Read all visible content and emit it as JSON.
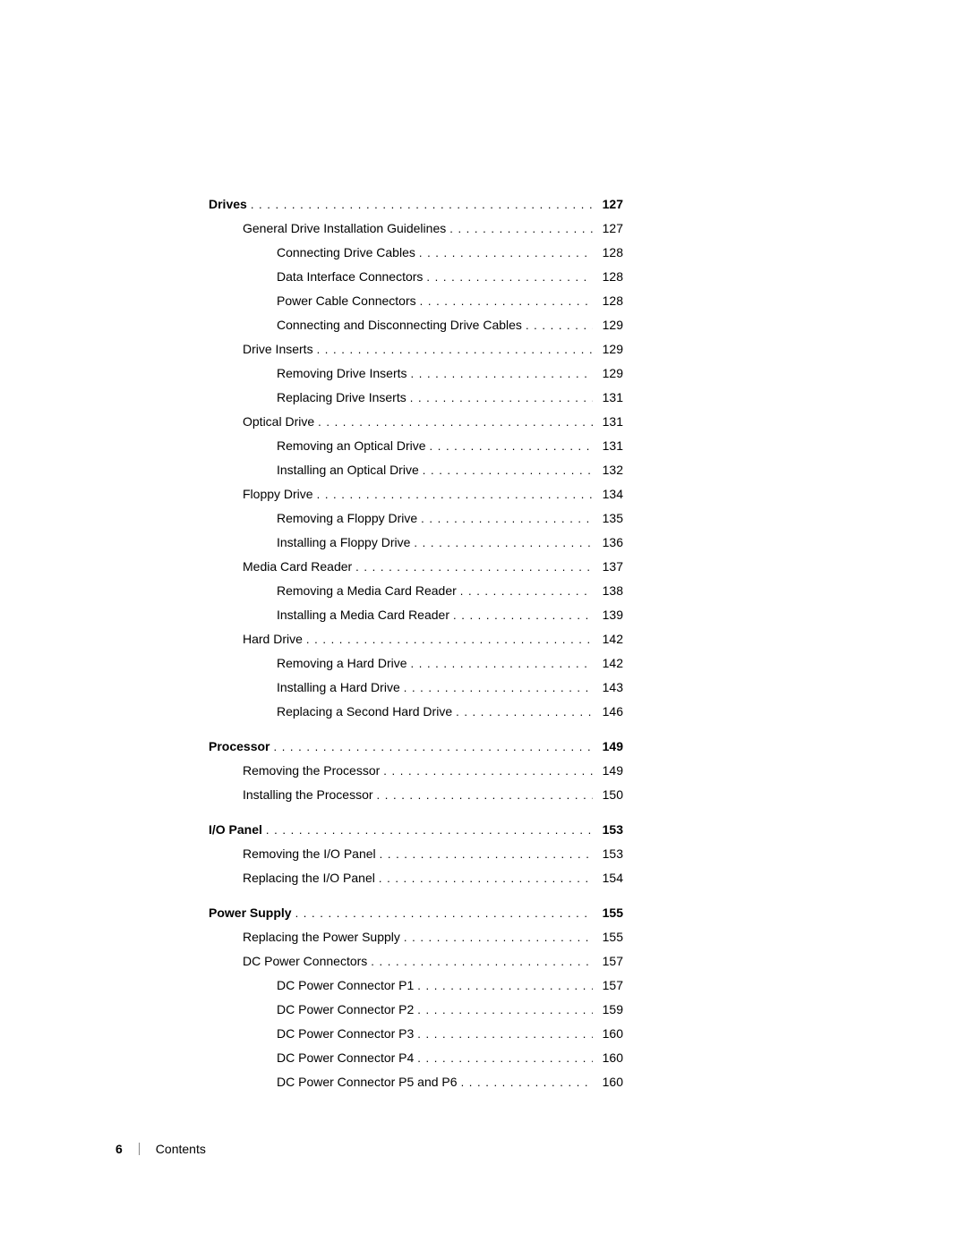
{
  "footer": {
    "page_number": "6",
    "section_label": "Contents"
  },
  "toc": {
    "sections": [
      {
        "heading": {
          "label": "Drives",
          "page": "127",
          "bold": true,
          "indent": 0
        },
        "entries": [
          {
            "label": "General Drive Installation Guidelines",
            "page": "127",
            "indent": 1
          },
          {
            "label": "Connecting Drive Cables",
            "page": "128",
            "indent": 2
          },
          {
            "label": "Data Interface Connectors",
            "page": "128",
            "indent": 2
          },
          {
            "label": "Power Cable Connectors",
            "page": "128",
            "indent": 2
          },
          {
            "label": "Connecting and Disconnecting Drive Cables",
            "page": "129",
            "indent": 2
          },
          {
            "label": "Drive Inserts",
            "page": "129",
            "indent": 1
          },
          {
            "label": "Removing Drive Inserts",
            "page": "129",
            "indent": 2
          },
          {
            "label": "Replacing Drive Inserts",
            "page": "131",
            "indent": 2
          },
          {
            "label": "Optical Drive",
            "page": "131",
            "indent": 1
          },
          {
            "label": "Removing an Optical Drive",
            "page": "131",
            "indent": 2
          },
          {
            "label": "Installing an Optical Drive",
            "page": "132",
            "indent": 2
          },
          {
            "label": "Floppy Drive",
            "page": "134",
            "indent": 1
          },
          {
            "label": "Removing a Floppy Drive",
            "page": "135",
            "indent": 2
          },
          {
            "label": "Installing a Floppy Drive",
            "page": "136",
            "indent": 2
          },
          {
            "label": "Media Card Reader",
            "page": "137",
            "indent": 1
          },
          {
            "label": "Removing a Media Card Reader",
            "page": "138",
            "indent": 2
          },
          {
            "label": "Installing a Media Card Reader",
            "page": "139",
            "indent": 2
          },
          {
            "label": "Hard Drive",
            "page": "142",
            "indent": 1
          },
          {
            "label": "Removing a Hard Drive",
            "page": "142",
            "indent": 2
          },
          {
            "label": "Installing a Hard Drive",
            "page": "143",
            "indent": 2
          },
          {
            "label": "Replacing a Second Hard Drive",
            "page": "146",
            "indent": 2
          }
        ]
      },
      {
        "heading": {
          "label": "Processor",
          "page": "149",
          "bold": true,
          "indent": 0
        },
        "entries": [
          {
            "label": "Removing the Processor",
            "page": "149",
            "indent": 1
          },
          {
            "label": "Installing the Processor",
            "page": "150",
            "indent": 1
          }
        ]
      },
      {
        "heading": {
          "label": "I/O Panel",
          "page": "153",
          "bold": true,
          "indent": 0
        },
        "entries": [
          {
            "label": "Removing the I/O Panel",
            "page": "153",
            "indent": 1
          },
          {
            "label": "Replacing the I/O Panel",
            "page": "154",
            "indent": 1
          }
        ]
      },
      {
        "heading": {
          "label": "Power Supply",
          "page": "155",
          "bold": true,
          "indent": 0
        },
        "entries": [
          {
            "label": "Replacing the Power Supply",
            "page": "155",
            "indent": 1
          },
          {
            "label": "DC Power Connectors",
            "page": "157",
            "indent": 1
          },
          {
            "label": "DC Power Connector P1",
            "page": "157",
            "indent": 2
          },
          {
            "label": "DC Power Connector P2",
            "page": "159",
            "indent": 2
          },
          {
            "label": "DC Power Connector P3",
            "page": "160",
            "indent": 2
          },
          {
            "label": "DC Power Connector P4",
            "page": "160",
            "indent": 2
          },
          {
            "label": "DC Power Connector P5 and P6",
            "page": "160",
            "indent": 2
          }
        ]
      }
    ]
  }
}
